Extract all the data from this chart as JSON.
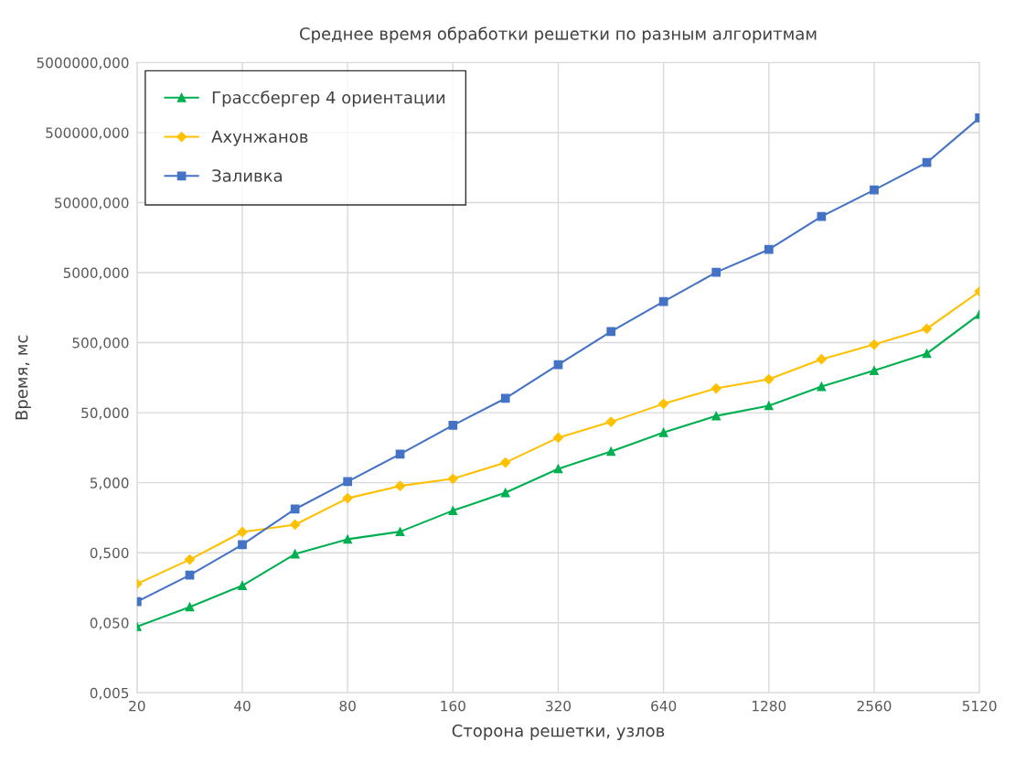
{
  "chart_data": {
    "type": "line",
    "title": "Среднее время обработки решетки по разным алгоритмам",
    "xlabel": "Сторона решетки, узлов",
    "ylabel": "Время, мс",
    "log": "xy",
    "x": [
      20,
      28.3,
      40,
      56.6,
      80,
      113,
      160,
      226,
      320,
      453,
      640,
      905,
      1280,
      1810,
      2560,
      3620,
      5120
    ],
    "xlim": [
      20,
      5120
    ],
    "xticks": [
      20,
      40,
      80,
      160,
      320,
      640,
      1280,
      2560,
      5120
    ],
    "ylim": [
      0.005,
      5000000
    ],
    "yticks": [
      {
        "value": 0.005,
        "label": "0,005"
      },
      {
        "value": 0.05,
        "label": "0,050"
      },
      {
        "value": 0.5,
        "label": "0,500"
      },
      {
        "value": 5,
        "label": "5,000"
      },
      {
        "value": 50,
        "label": "50,000"
      },
      {
        "value": 500,
        "label": "500,000"
      },
      {
        "value": 5000,
        "label": "5000,000"
      },
      {
        "value": 50000,
        "label": "50000,000"
      },
      {
        "value": 500000,
        "label": "500000,000"
      },
      {
        "value": 5000000,
        "label": "5000000,000"
      }
    ],
    "grid": true,
    "legend": "top left",
    "line_style": "solid",
    "series": [
      {
        "name": "Грассбергер 4 ориентации",
        "color": "#00b050",
        "marker": "triangle",
        "values": [
          0.044,
          0.084,
          0.17,
          0.48,
          0.78,
          1.0,
          2.0,
          3.6,
          7.9,
          14,
          26,
          45,
          63,
          118,
          200,
          350,
          1270
        ]
      },
      {
        "name": "Ахунжанов",
        "color": "#ffc000",
        "marker": "diamond",
        "values": [
          0.18,
          0.4,
          0.99,
          1.26,
          3.0,
          4.5,
          5.7,
          9.7,
          22,
          37,
          67,
          111,
          150,
          290,
          470,
          790,
          2690
        ]
      },
      {
        "name": "Заливка",
        "color": "#4472c4",
        "marker": "square",
        "values": [
          0.1,
          0.24,
          0.65,
          2.1,
          5.2,
          12.8,
          33,
          80,
          243,
          720,
          1930,
          5060,
          10700,
          31700,
          75700,
          187000,
          813000
        ]
      }
    ]
  }
}
